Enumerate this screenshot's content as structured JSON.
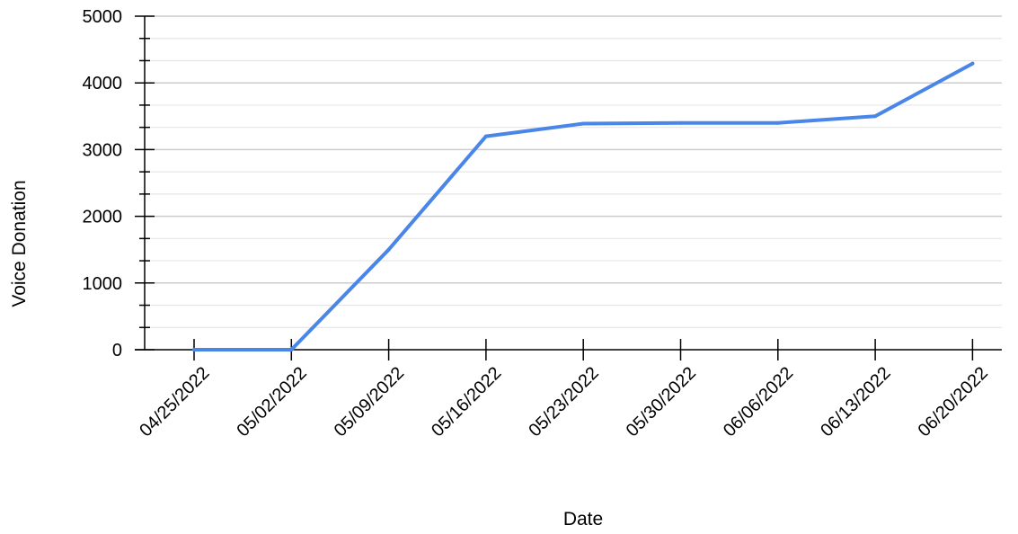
{
  "chart_data": {
    "type": "line",
    "title": "",
    "xlabel": "Date",
    "ylabel": "Voice Donation",
    "x": [
      "04/25/2022",
      "05/02/2022",
      "05/09/2022",
      "05/16/2022",
      "05/23/2022",
      "05/30/2022",
      "06/06/2022",
      "06/13/2022",
      "06/20/2022"
    ],
    "series": [
      {
        "values": [
          0,
          0,
          1500,
          3200,
          3390,
          3400,
          3400,
          3500,
          4290
        ]
      }
    ],
    "yticks": [
      "0",
      "1000",
      "2000",
      "3000",
      "4000",
      "5000"
    ],
    "ylim": [
      0,
      5000
    ],
    "grid": true,
    "legend": "none",
    "colors": {
      "line": "#4a86e8",
      "grid": "#cccccc",
      "minor_grid": "#e6e6e6",
      "axis": "#000000"
    }
  }
}
